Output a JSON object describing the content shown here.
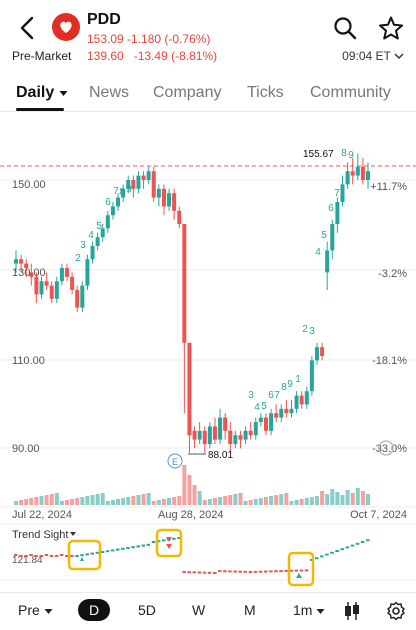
{
  "header": {
    "ticker": "PDD",
    "price": "153.09",
    "change": "-1.180",
    "change_pct": "(-0.76%)",
    "premarket_label": "Pre-Market",
    "premarket_price": "139.60",
    "premarket_change": "-13.49",
    "premarket_pct": "(-8.81%)",
    "time": "09:04 ET",
    "quote_color": "#e8453c"
  },
  "tabs": [
    "Daily",
    "News",
    "Company",
    "Ticks",
    "Community"
  ],
  "chart": {
    "y_labels": [
      "150.00",
      "130.00",
      "110.00",
      "90.00"
    ],
    "pct_labels": [
      "+11.7%",
      "-3.2%",
      "-18.1%",
      "-33.0%"
    ],
    "high_label": "155.67",
    "low_label": "88.01",
    "earnings_marker": "E",
    "x_labels": [
      "Jul 22, 2024",
      "Aug 28, 2024",
      "Oct 7, 2024"
    ],
    "trend_label": "Trend Sight",
    "trend_value": "121.84",
    "seq_top": [
      "2",
      "3",
      "4",
      "5",
      "6",
      "7",
      "8",
      "9"
    ],
    "seq_mid": [
      "2",
      "3"
    ],
    "seq_right": [
      "4",
      "5",
      "6",
      "7",
      "8",
      "9"
    ],
    "seq_recover": [
      "3",
      "4",
      "5",
      "6",
      "7",
      "8",
      "9",
      "1"
    ],
    "up_color": "#26a69a",
    "down_color": "#ef5350"
  },
  "bottom": {
    "pre": "Pre",
    "intervals": [
      "D",
      "5D",
      "W",
      "M"
    ],
    "minute": "1m"
  }
}
